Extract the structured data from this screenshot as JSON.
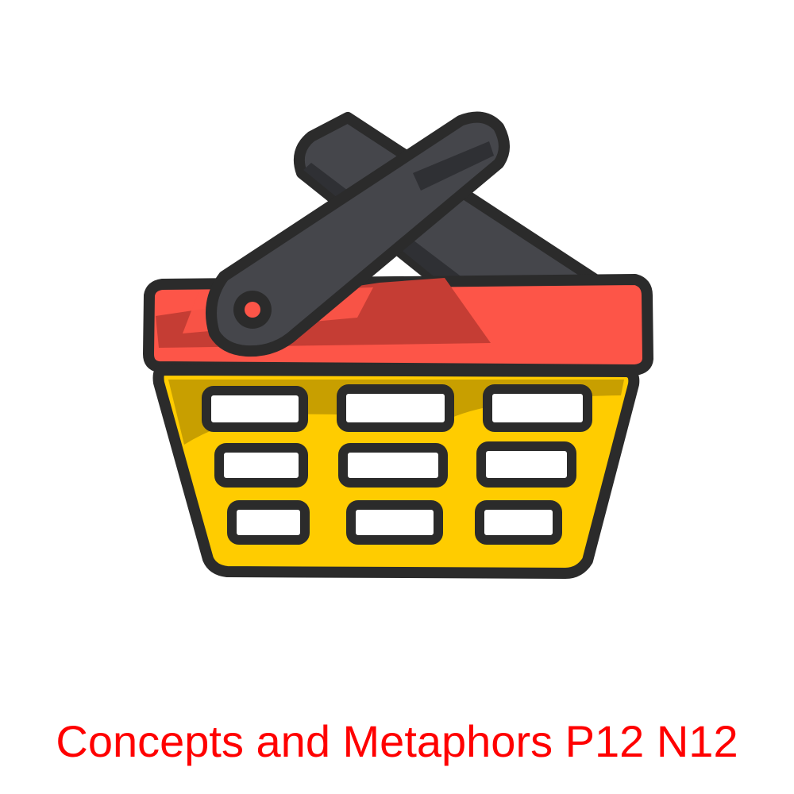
{
  "icon": {
    "name": "shopping-basket",
    "colors": {
      "outline": "#2b2b2b",
      "handle": "#45464b",
      "handle_shade": "#2f3034",
      "rim": "#fd5548",
      "rim_shade": "#c53d34",
      "body": "#ffcc00",
      "body_shade": "#c89f00",
      "slot": "#ffffff"
    }
  },
  "caption": {
    "text": "Concepts and Metaphors P12 N12",
    "color": "#ff0000"
  }
}
